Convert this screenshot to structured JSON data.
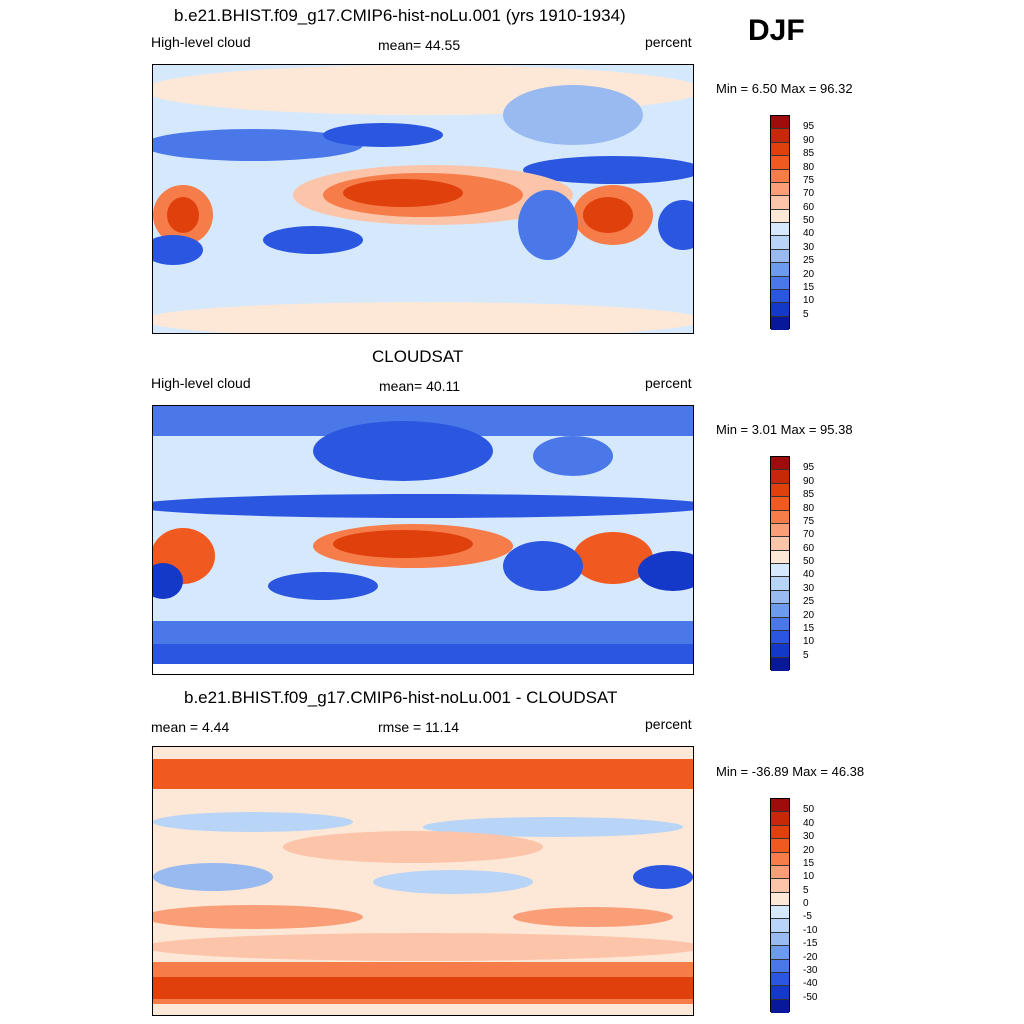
{
  "season": "DJF",
  "panels": [
    {
      "title": "b.e21.BHIST.f09_g17.CMIP6-hist-noLu.001 (yrs 1910-1934)",
      "left": "High-level cloud",
      "center": "mean=  44.55",
      "right": "percent",
      "minmax": "Min =   6.50 Max =  96.32",
      "colors": [
        "#9e0c0c",
        "#c8280a",
        "#e0400c",
        "#f05a20",
        "#f67c4a",
        "#fa9e78",
        "#fcc4a8",
        "#fde8d8",
        "#d6e8fb",
        "#b8d4f6",
        "#98baf0",
        "#6c9aec",
        "#4a78e8",
        "#2a56e0",
        "#1438c8",
        "#081898"
      ],
      "labels": [
        "95",
        "90",
        "85",
        "80",
        "75",
        "70",
        "60",
        "50",
        "40",
        "30",
        "25",
        "20",
        "15",
        "10",
        "5"
      ]
    },
    {
      "title": "CLOUDSAT",
      "left": "High-level cloud",
      "center": "mean=  40.11",
      "right": "percent",
      "minmax": "Min =   3.01 Max =  95.38",
      "colors": [
        "#9e0c0c",
        "#c8280a",
        "#e0400c",
        "#f05a20",
        "#f67c4a",
        "#fa9e78",
        "#fcc4a8",
        "#fde8d8",
        "#d6e8fb",
        "#b8d4f6",
        "#98baf0",
        "#6c9aec",
        "#4a78e8",
        "#2a56e0",
        "#1438c8",
        "#081898"
      ],
      "labels": [
        "95",
        "90",
        "85",
        "80",
        "75",
        "70",
        "60",
        "50",
        "40",
        "30",
        "25",
        "20",
        "15",
        "10",
        "5"
      ]
    },
    {
      "title": "b.e21.BHIST.f09_g17.CMIP6-hist-noLu.001 - CLOUDSAT",
      "left": "mean =   4.44",
      "center": "rmse =  11.14",
      "right": "percent",
      "minmax": "Min = -36.89 Max =  46.38",
      "colors": [
        "#9e0c0c",
        "#c8280a",
        "#e0400c",
        "#f05a20",
        "#f67c4a",
        "#fa9e78",
        "#fcc4a8",
        "#fde8d8",
        "#d6e8fb",
        "#b8d4f6",
        "#98baf0",
        "#6c9aec",
        "#4a78e8",
        "#2a56e0",
        "#1438c8",
        "#081898"
      ],
      "labels": [
        "50",
        "40",
        "30",
        "20",
        "15",
        "10",
        "5",
        "0",
        "-5",
        "-10",
        "-15",
        "-20",
        "-30",
        "-40",
        "-50"
      ]
    }
  ]
}
